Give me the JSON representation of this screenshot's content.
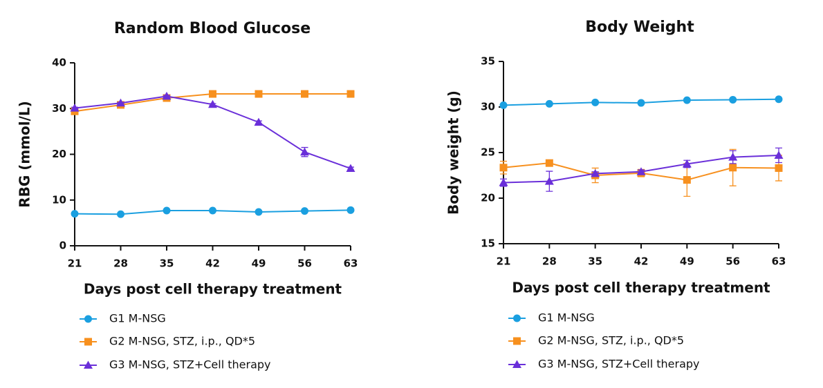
{
  "chart_data": [
    {
      "type": "line",
      "title": "Random Blood Glucose",
      "x_label": "Days post cell therapy treatment",
      "y_label": "RBG (mmol/L)",
      "x": [
        21,
        28,
        35,
        42,
        49,
        56,
        63
      ],
      "xlim": [
        21,
        63
      ],
      "xticks": [
        21,
        28,
        35,
        42,
        49,
        56,
        63
      ],
      "ylim": [
        0,
        40
      ],
      "yticks": [
        0,
        10,
        20,
        30,
        40
      ],
      "series": [
        {
          "name": "G1 M-NSG",
          "color": "#1a9fe0",
          "marker": "circle",
          "values": [
            7.0,
            6.9,
            7.7,
            7.7,
            7.4,
            7.6,
            7.8
          ]
        },
        {
          "name": "G2 M-NSG, STZ, i.p., QD*5",
          "color": "#f7901e",
          "marker": "square",
          "values": [
            29.4,
            30.8,
            32.3,
            33.2,
            33.2,
            33.2,
            33.2
          ]
        },
        {
          "name": "G3 M-NSG, STZ+Cell therapy",
          "color": "#6a2fd9",
          "marker": "triangle",
          "values": [
            30.1,
            31.2,
            32.7,
            30.9,
            27.0,
            20.5,
            16.9
          ],
          "errors": [
            0.2,
            0.2,
            0.2,
            0.2,
            0.3,
            1.0,
            0.3
          ]
        }
      ]
    },
    {
      "type": "line",
      "title": "Body Weight",
      "x_label": "Days post cell therapy treatment",
      "y_label": "Body weight (g)",
      "x": [
        21,
        28,
        35,
        42,
        49,
        56,
        63
      ],
      "xlim": [
        21,
        63
      ],
      "xticks": [
        21,
        28,
        35,
        42,
        49,
        56,
        63
      ],
      "ylim": [
        15,
        35
      ],
      "yticks": [
        15,
        20,
        25,
        30,
        35
      ],
      "series": [
        {
          "name": "G1 M-NSG",
          "color": "#1a9fe0",
          "marker": "circle",
          "values": [
            30.2,
            30.35,
            30.5,
            30.45,
            30.75,
            30.8,
            30.85
          ]
        },
        {
          "name": "G2 M-NSG, STZ, i.p., QD*5",
          "color": "#f7901e",
          "marker": "square",
          "values": [
            23.35,
            23.85,
            22.5,
            22.75,
            22.0,
            23.35,
            23.3
          ],
          "errors": [
            0.7,
            0.1,
            0.8,
            0.4,
            1.8,
            2.0,
            1.4
          ]
        },
        {
          "name": "G3 M-NSG, STZ+Cell therapy",
          "color": "#6a2fd9",
          "marker": "triangle",
          "values": [
            21.7,
            21.85,
            22.7,
            22.9,
            23.75,
            24.5,
            24.7
          ],
          "errors": [
            0.4,
            1.1,
            0.2,
            0.2,
            0.4,
            0.7,
            0.8
          ]
        }
      ]
    }
  ]
}
